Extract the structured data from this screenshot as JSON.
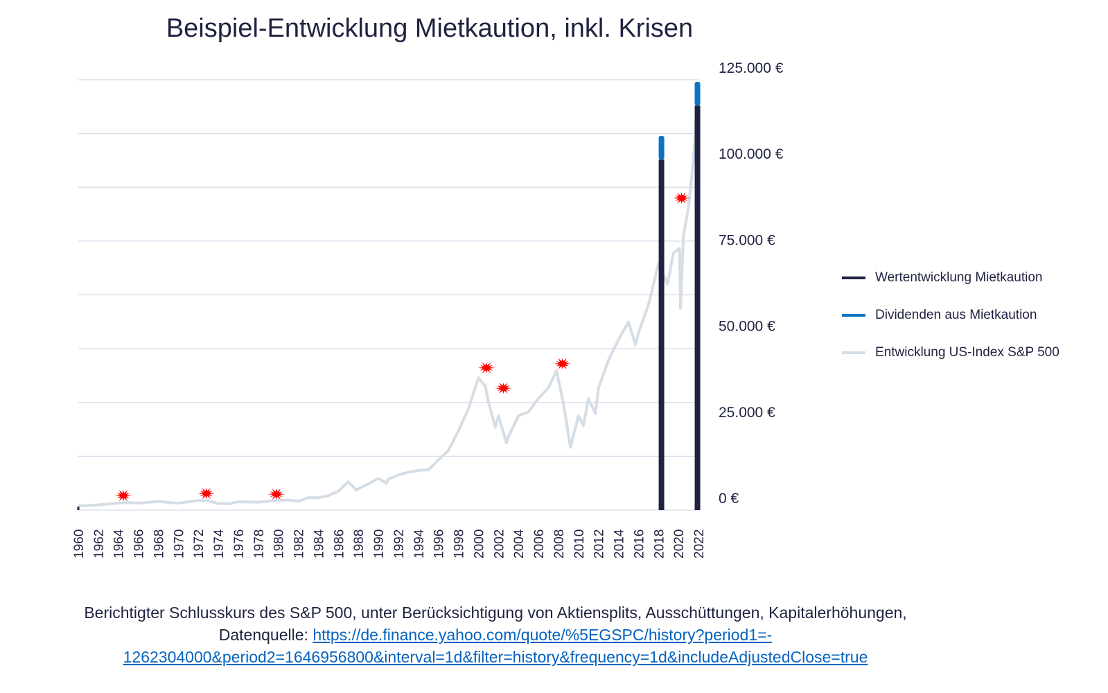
{
  "chart_data": {
    "type": "line",
    "title": "Beispiel-Entwicklung Mietkaution, inkl. Krisen",
    "xlim": [
      1960,
      2022
    ],
    "ylim": [
      0,
      125000
    ],
    "x_ticks": [
      "1960",
      "1962",
      "1964",
      "1966",
      "1968",
      "1970",
      "1972",
      "1974",
      "1976",
      "1978",
      "1980",
      "1982",
      "1984",
      "1986",
      "1988",
      "1990",
      "1992",
      "1994",
      "1996",
      "1998",
      "2000",
      "2002",
      "2004",
      "2006",
      "2008",
      "2010",
      "2012",
      "2014",
      "2016",
      "2018",
      "2020",
      "2022"
    ],
    "y_ticks": [
      0,
      25000,
      50000,
      75000,
      100000,
      125000
    ],
    "y_tick_labels": [
      "0 €",
      "25.000 €",
      "50.000 €",
      "75.000 €",
      "100.000 €",
      "125.000 €"
    ],
    "y_axis_position": "right",
    "grid": "horizontal",
    "legend_position": "right",
    "series": [
      {
        "name": "Wertentwicklung Mietkaution",
        "color": "#1f2240",
        "type": "bar",
        "points": [
          {
            "x": 1960,
            "y": 1000
          },
          {
            "x": 2018.3,
            "y": 101800
          },
          {
            "x": 2021.9,
            "y": 117500
          }
        ]
      },
      {
        "name": "Dividenden aus Mietkaution",
        "color": "#0a74c4",
        "type": "bar-stack",
        "points": [
          {
            "x": 2018.3,
            "y": 6900
          },
          {
            "x": 2021.9,
            "y": 6900
          }
        ]
      },
      {
        "name": "Entwicklung US-Index S&P 500",
        "color": "#d5dde5",
        "type": "line",
        "points": [
          [
            1960,
            1200
          ],
          [
            1962,
            1500
          ],
          [
            1964,
            2000
          ],
          [
            1965,
            2200
          ],
          [
            1966,
            2000
          ],
          [
            1968,
            2500
          ],
          [
            1970,
            2000
          ],
          [
            1972,
            2800
          ],
          [
            1973,
            2700
          ],
          [
            1974,
            1900
          ],
          [
            1975,
            1800
          ],
          [
            1976,
            2400
          ],
          [
            1978,
            2300
          ],
          [
            1980,
            2800
          ],
          [
            1981,
            2900
          ],
          [
            1982,
            2600
          ],
          [
            1983,
            3600
          ],
          [
            1984,
            3600
          ],
          [
            1985,
            4200
          ],
          [
            1986,
            5500
          ],
          [
            1987,
            8200
          ],
          [
            1987.8,
            5800
          ],
          [
            1988,
            6200
          ],
          [
            1989,
            7600
          ],
          [
            1990,
            9200
          ],
          [
            1990.8,
            7800
          ],
          [
            1991,
            9000
          ],
          [
            1992,
            10200
          ],
          [
            1993,
            11000
          ],
          [
            1994,
            11500
          ],
          [
            1995,
            11700
          ],
          [
            1996,
            14500
          ],
          [
            1997,
            17300
          ],
          [
            1998,
            23000
          ],
          [
            1999,
            29400
          ],
          [
            2000,
            38400
          ],
          [
            2000.7,
            36000
          ],
          [
            2001,
            31400
          ],
          [
            2001.7,
            24000
          ],
          [
            2002,
            27400
          ],
          [
            2002.8,
            19500
          ],
          [
            2003,
            21300
          ],
          [
            2004,
            27400
          ],
          [
            2005,
            28500
          ],
          [
            2006,
            32400
          ],
          [
            2007,
            35500
          ],
          [
            2007.8,
            40500
          ],
          [
            2008.5,
            31000
          ],
          [
            2009.2,
            18300
          ],
          [
            2010,
            27400
          ],
          [
            2010.5,
            24500
          ],
          [
            2011,
            32400
          ],
          [
            2011.7,
            28000
          ],
          [
            2012,
            35400
          ],
          [
            2013,
            43500
          ],
          [
            2014,
            49500
          ],
          [
            2015,
            54600
          ],
          [
            2015.7,
            48000
          ],
          [
            2016,
            51500
          ],
          [
            2017,
            59600
          ],
          [
            2018,
            71600
          ],
          [
            2018.9,
            65600
          ],
          [
            2019.5,
            74700
          ],
          [
            2020.1,
            76000
          ],
          [
            2020.2,
            58600
          ],
          [
            2020.5,
            79700
          ],
          [
            2021,
            87800
          ],
          [
            2021.5,
            101900
          ],
          [
            2022,
            124000
          ]
        ]
      }
    ],
    "crisis_markers": [
      {
        "x": 1964.5,
        "y": 4200
      },
      {
        "x": 1972.8,
        "y": 4800
      },
      {
        "x": 1979.8,
        "y": 4600
      },
      {
        "x": 2000.8,
        "y": 41300
      },
      {
        "x": 2002.5,
        "y": 35400
      },
      {
        "x": 2008.4,
        "y": 42500
      },
      {
        "x": 2020.3,
        "y": 90600
      }
    ],
    "crisis_marker_color": "#ff0000",
    "grid_color": "#d9d9ec"
  },
  "legend": [
    {
      "label": "Wertentwicklung Mietkaution",
      "color": "#1f2240"
    },
    {
      "label": "Dividenden aus Mietkaution",
      "color": "#0a74c4"
    },
    {
      "label": "Entwicklung US-Index S&P 500",
      "color": "#d5dde5"
    }
  ],
  "caption": {
    "line1": "Berichtigter Schlusskurs des S&P 500, unter Berücksichtigung von Aktiensplits, Ausschüttungen, Kapitalerhöhungen,",
    "source_label": "Datenquelle: ",
    "link_part1": "https://de.finance.yahoo.com/quote/%5EGSPC/history?period1=-",
    "link_part2": "1262304000&period2=1646956800&interval=1d&filter=history&frequency=1d&includeAdjustedClose=true"
  }
}
